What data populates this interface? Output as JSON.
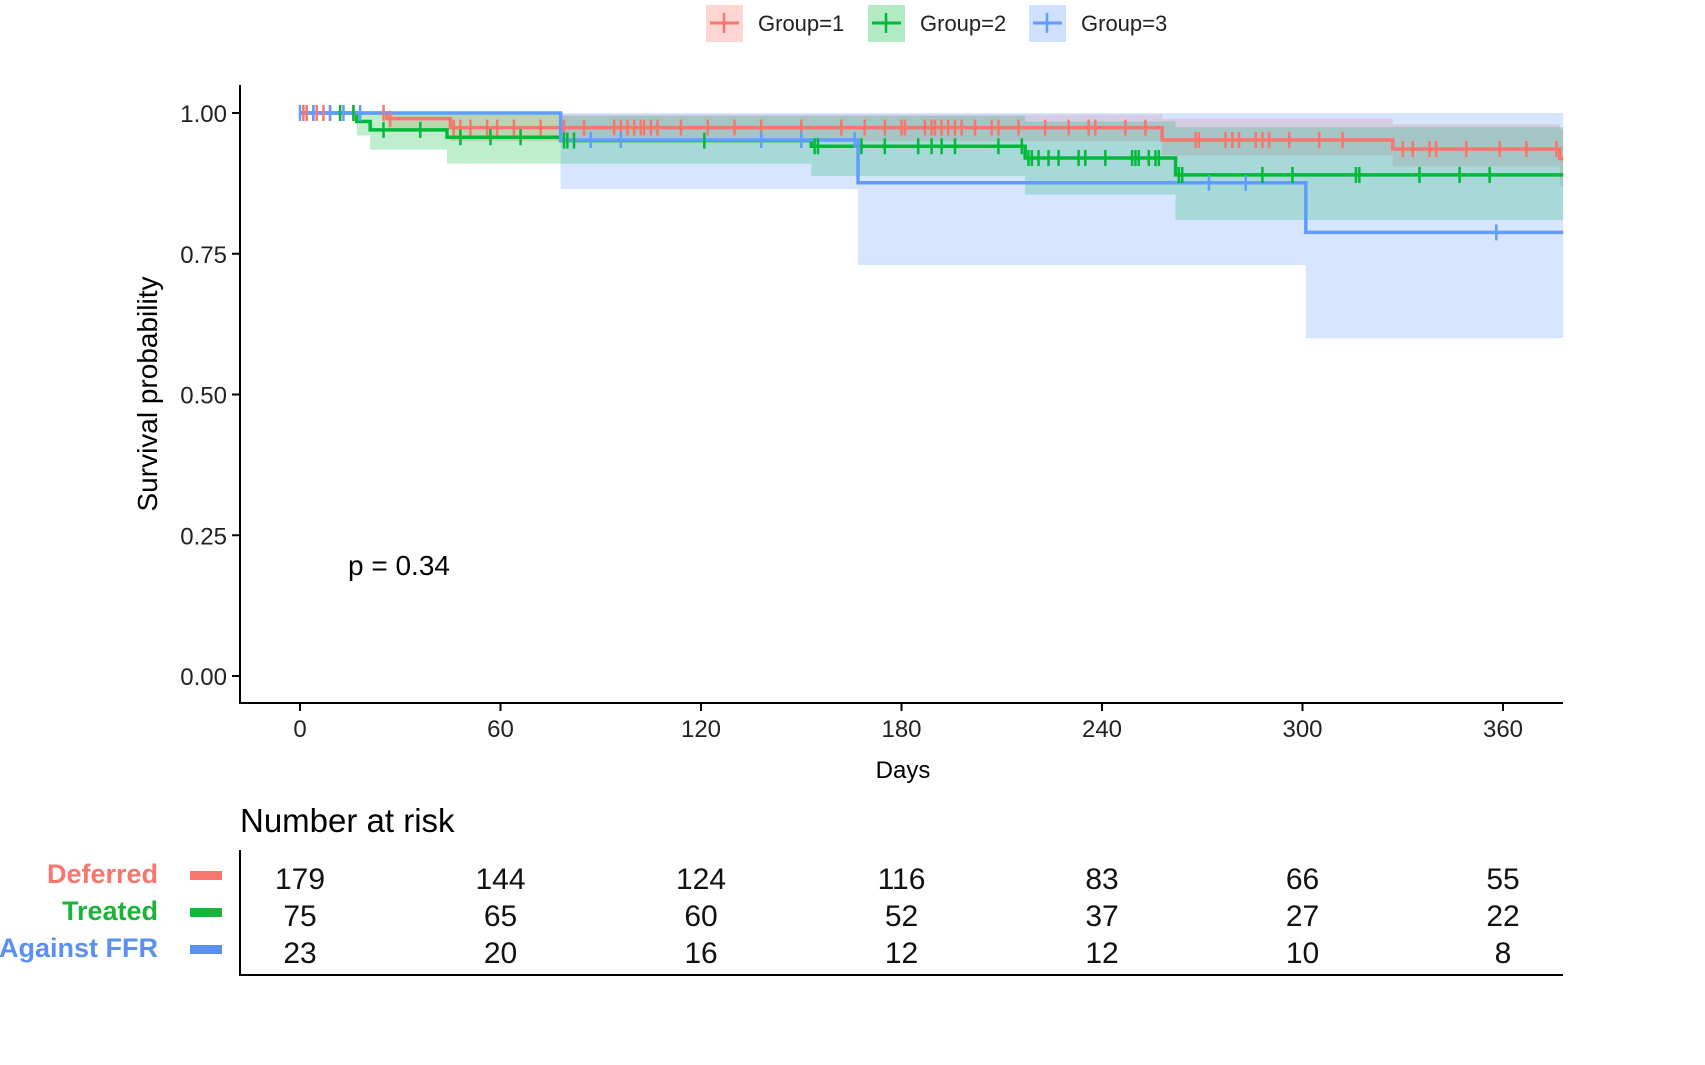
{
  "chart_data": {
    "type": "line",
    "subtype": "kaplan-meier",
    "xlabel": "Days",
    "ylabel": "Survival probability",
    "xlim": [
      0,
      378
    ],
    "ylim": [
      0,
      1
    ],
    "x_ticks": [
      0,
      60,
      120,
      180,
      240,
      300,
      360
    ],
    "y_ticks": [
      "0.00",
      "0.25",
      "0.50",
      "0.75",
      "1.00"
    ],
    "annotation": "p = 0.34",
    "legend": {
      "placement": "top",
      "entries": [
        "Group=1",
        "Group=2",
        "Group=3"
      ]
    },
    "series": [
      {
        "name": "Group=1",
        "color": "#F8766D",
        "steps": [
          [
            0,
            1.0
          ],
          [
            26,
            0.99
          ],
          [
            45,
            0.974
          ],
          [
            258,
            0.952
          ],
          [
            327,
            0.936
          ],
          [
            377,
            0.919
          ]
        ],
        "ci": [
          [
            0,
            1,
            1
          ],
          [
            26,
            0.97,
            1
          ],
          [
            45,
            0.95,
            0.997
          ],
          [
            258,
            0.925,
            0.99
          ],
          [
            327,
            0.905,
            0.98
          ],
          [
            377,
            0.87,
            0.97
          ]
        ],
        "censor": [
          1,
          2,
          4,
          5,
          7,
          9,
          12,
          16,
          25,
          27,
          46,
          48,
          51,
          56,
          59,
          64,
          72,
          79,
          85,
          94,
          96,
          98,
          100,
          102,
          103,
          105,
          107,
          114,
          122,
          130,
          138,
          150,
          162,
          169,
          175,
          180,
          181,
          187,
          189,
          190,
          192,
          194,
          196,
          198,
          202,
          207,
          209,
          215,
          223,
          230,
          236,
          238,
          247,
          253,
          268,
          269,
          277,
          279,
          281,
          286,
          288,
          290,
          296,
          305,
          312,
          330,
          333,
          338,
          340,
          349,
          359,
          367,
          376
        ]
      },
      {
        "name": "Group=2",
        "color": "#00BA38",
        "steps": [
          [
            0,
            1.0
          ],
          [
            17,
            0.985
          ],
          [
            21,
            0.97
          ],
          [
            44,
            0.957
          ],
          [
            78,
            0.951
          ],
          [
            153,
            0.941
          ],
          [
            217,
            0.92
          ],
          [
            262,
            0.89
          ]
        ],
        "ci": [
          [
            0,
            1,
            1
          ],
          [
            17,
            0.96,
            1
          ],
          [
            21,
            0.935,
            1
          ],
          [
            44,
            0.91,
            1
          ],
          [
            78,
            0.91,
            0.995
          ],
          [
            153,
            0.888,
            0.995
          ],
          [
            217,
            0.855,
            0.985
          ],
          [
            262,
            0.81,
            0.975
          ]
        ],
        "censor": [
          12,
          16,
          25,
          36,
          48,
          57,
          66,
          79,
          80,
          82,
          121,
          154,
          155,
          168,
          175,
          185,
          189,
          192,
          196,
          209,
          216,
          218,
          219,
          221,
          224,
          227,
          233,
          235,
          241,
          249,
          250,
          251,
          254,
          256,
          257,
          263,
          264,
          288,
          297,
          316,
          317,
          335,
          347,
          356
        ]
      },
      {
        "name": "Group=3",
        "color": "#619CFF",
        "steps": [
          [
            0,
            1.0
          ],
          [
            78,
            0.952
          ],
          [
            167,
            0.876
          ],
          [
            301,
            0.788
          ]
        ],
        "ci": [
          [
            0,
            1,
            1
          ],
          [
            78,
            0.865,
            1
          ],
          [
            167,
            0.73,
            1
          ],
          [
            301,
            0.6,
            1
          ]
        ],
        "censor": [
          0,
          4,
          9,
          13,
          18,
          87,
          96,
          138,
          150,
          166,
          272,
          283,
          358
        ]
      }
    ],
    "risk_table": {
      "title": "Number at risk",
      "times": [
        0,
        60,
        120,
        180,
        240,
        300,
        360
      ],
      "rows": [
        {
          "label": "Deferred",
          "color": "#F8766D",
          "values": [
            179,
            144,
            124,
            116,
            83,
            66,
            55
          ]
        },
        {
          "label": "Treated",
          "color": "#1DB33A",
          "values": [
            75,
            65,
            60,
            52,
            37,
            27,
            22
          ]
        },
        {
          "label": "Against FFR",
          "color": "#5B8FF0",
          "values": [
            23,
            20,
            16,
            12,
            12,
            10,
            8
          ]
        }
      ]
    }
  }
}
